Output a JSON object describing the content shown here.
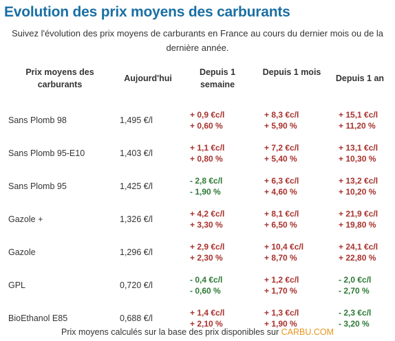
{
  "title": "Evolution des prix moyens des carburants",
  "subtitle": "Suivez l'évolution des prix moyens de carburants en France au cours du dernier mois ou de la dernière année.",
  "headers": {
    "fuel": "Prix moyens des carburants",
    "today": "Aujourd'hui",
    "week": "Depuis 1 semaine",
    "month": "Depuis 1 mois",
    "year": "Depuis 1 an"
  },
  "rows": [
    {
      "name": "Sans Plomb 98",
      "price": "1,495 €/l",
      "week": {
        "abs": "+ 0,9 €c/l",
        "pct": "+ 0,60 %",
        "dir": "up"
      },
      "month": {
        "abs": "+ 8,3 €c/l",
        "pct": "+ 5,90 %",
        "dir": "up"
      },
      "year": {
        "abs": "+ 15,1 €c/l",
        "pct": "+ 11,20 %",
        "dir": "up"
      }
    },
    {
      "name": "Sans Plomb 95-E10",
      "price": "1,403 €/l",
      "week": {
        "abs": "+ 1,1 €c/l",
        "pct": "+ 0,80 %",
        "dir": "up"
      },
      "month": {
        "abs": "+ 7,2 €c/l",
        "pct": "+ 5,40 %",
        "dir": "up"
      },
      "year": {
        "abs": "+ 13,1 €c/l",
        "pct": "+ 10,30 %",
        "dir": "up"
      }
    },
    {
      "name": "Sans Plomb 95",
      "price": "1,425 €/l",
      "week": {
        "abs": "- 2,8 €c/l",
        "pct": "- 1,90 %",
        "dir": "down"
      },
      "month": {
        "abs": "+ 6,3 €c/l",
        "pct": "+ 4,60 %",
        "dir": "up"
      },
      "year": {
        "abs": "+ 13,2 €c/l",
        "pct": "+ 10,20 %",
        "dir": "up"
      }
    },
    {
      "name": "Gazole +",
      "price": "1,326 €/l",
      "week": {
        "abs": "+ 4,2 €c/l",
        "pct": "+ 3,30 %",
        "dir": "up"
      },
      "month": {
        "abs": "+ 8,1 €c/l",
        "pct": "+ 6,50 %",
        "dir": "up"
      },
      "year": {
        "abs": "+ 21,9 €c/l",
        "pct": "+ 19,80 %",
        "dir": "up"
      }
    },
    {
      "name": "Gazole",
      "price": "1,296 €/l",
      "week": {
        "abs": "+ 2,9 €c/l",
        "pct": "+ 2,30 %",
        "dir": "up"
      },
      "month": {
        "abs": "+ 10,4 €c/l",
        "pct": "+ 8,70 %",
        "dir": "up"
      },
      "year": {
        "abs": "+ 24,1 €c/l",
        "pct": "+ 22,80 %",
        "dir": "up"
      }
    },
    {
      "name": "GPL",
      "price": "0,720 €/l",
      "week": {
        "abs": "- 0,4 €c/l",
        "pct": "- 0,60 %",
        "dir": "down"
      },
      "month": {
        "abs": "+ 1,2 €c/l",
        "pct": "+ 1,70 %",
        "dir": "up"
      },
      "year": {
        "abs": "- 2,0 €c/l",
        "pct": "- 2,70 %",
        "dir": "down"
      }
    },
    {
      "name": "BioEthanol E85",
      "price": "0,688 €/l",
      "week": {
        "abs": "+ 1,4 €c/l",
        "pct": "+ 2,10 %",
        "dir": "up"
      },
      "month": {
        "abs": "+ 1,3 €c/l",
        "pct": "+ 1,90 %",
        "dir": "up"
      },
      "year": {
        "abs": "- 2,3 €c/l",
        "pct": "- 3,20 %",
        "dir": "down"
      }
    }
  ],
  "footer": {
    "text": "Prix moyens calculés sur la base des prix disponibles sur ",
    "link": "CARBU.COM"
  },
  "colors": {
    "title": "#1a6fa3",
    "increase": "#a8322d",
    "decrease": "#2c7a35",
    "link": "#e8951d"
  }
}
